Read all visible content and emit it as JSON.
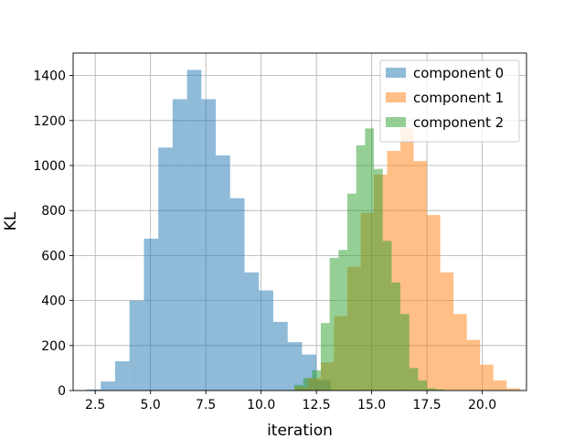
{
  "chart_data": {
    "type": "bar",
    "subtype": "histogram",
    "title": "",
    "xlabel": "iteration",
    "ylabel": "KL",
    "xlim": [
      1.5,
      22.0
    ],
    "ylim": [
      0,
      1500
    ],
    "xticks": [
      2.5,
      5.0,
      7.5,
      10.0,
      12.5,
      15.0,
      17.5,
      20.0
    ],
    "xtick_labels": [
      "2.5",
      "5.0",
      "7.5",
      "10.0",
      "12.5",
      "15.0",
      "17.5",
      "20.0"
    ],
    "yticks": [
      0,
      200,
      400,
      600,
      800,
      1000,
      1200,
      1400
    ],
    "ytick_labels": [
      "0",
      "200",
      "400",
      "600",
      "800",
      "1000",
      "1200",
      "1400"
    ],
    "grid": true,
    "legend_position": "top-right",
    "bar_opacity": 0.5,
    "series": [
      {
        "name": "component 0",
        "color": "#1f77b4",
        "bin_edges": [
          2.1,
          2.75,
          3.4,
          4.05,
          4.7,
          5.35,
          6.0,
          6.65,
          7.3,
          7.95,
          8.6,
          9.25,
          9.9,
          10.55,
          11.2,
          11.85,
          12.5,
          13.15
        ],
        "counts": [
          5,
          40,
          130,
          400,
          675,
          1080,
          1295,
          1425,
          1295,
          1045,
          855,
          525,
          445,
          305,
          215,
          160,
          45
        ]
      },
      {
        "name": "component 1",
        "color": "#ff7f0e",
        "bin_edges": [
          11.5,
          12.1,
          12.7,
          13.3,
          13.9,
          14.5,
          15.1,
          15.7,
          16.3,
          16.9,
          17.5,
          18.1,
          18.7,
          19.3,
          19.9,
          20.5,
          21.1,
          21.7
        ],
        "counts": [
          15,
          55,
          125,
          330,
          550,
          790,
          960,
          1065,
          1165,
          1020,
          780,
          525,
          340,
          225,
          115,
          45,
          10
        ]
      },
      {
        "name": "component 2",
        "color": "#2ca02c",
        "bin_edges": [
          11.5,
          11.9,
          12.3,
          12.7,
          13.1,
          13.5,
          13.9,
          14.3,
          14.7,
          15.1,
          15.5,
          15.9,
          16.3,
          16.7,
          17.1,
          17.5,
          17.9,
          18.3
        ],
        "counts": [
          25,
          55,
          90,
          300,
          590,
          625,
          875,
          1090,
          1165,
          985,
          665,
          480,
          340,
          100,
          45,
          10,
          5
        ]
      }
    ]
  }
}
